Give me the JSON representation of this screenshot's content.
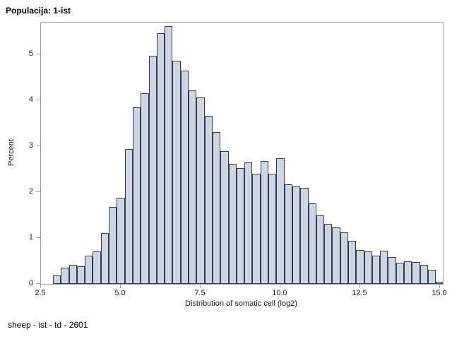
{
  "title": "Populacija: 1-ist",
  "footnote": "sheep - ist - td - 2601",
  "chart_data": {
    "type": "bar",
    "subtype": "histogram",
    "title": "Populacija: 1-ist",
    "xlabel": "Distribution of somatic cell (log2)",
    "ylabel": "Percent",
    "grid": false,
    "legend": null,
    "xlim": [
      2.5,
      15.09
    ],
    "ylim": [
      0,
      5.69
    ],
    "x_tick_labels": [
      "2.5",
      "5.0",
      "7.5",
      "10.0",
      "12.5",
      "15.0"
    ],
    "x_ticks": [
      2.5,
      5.0,
      7.5,
      10.0,
      12.5,
      15.0
    ],
    "y_tick_labels": [
      "0",
      "1",
      "2",
      "3",
      "4",
      "5"
    ],
    "y_ticks": [
      0,
      1,
      2,
      3,
      4,
      5
    ],
    "bin_width": 0.25,
    "bin_centers": [
      3.0,
      3.25,
      3.5,
      3.75,
      4.0,
      4.25,
      4.5,
      4.75,
      5.0,
      5.25,
      5.5,
      5.75,
      6.0,
      6.25,
      6.5,
      6.75,
      7.0,
      7.25,
      7.5,
      7.75,
      8.0,
      8.25,
      8.5,
      8.75,
      9.0,
      9.25,
      9.5,
      9.75,
      10.0,
      10.25,
      10.5,
      10.75,
      11.0,
      11.25,
      11.5,
      11.75,
      12.0,
      12.25,
      12.5,
      12.75,
      13.0,
      13.25,
      13.5,
      13.75,
      14.0,
      14.25,
      14.5,
      14.75,
      15.0
    ],
    "values": [
      0.18,
      0.36,
      0.41,
      0.39,
      0.62,
      0.7,
      1.1,
      1.68,
      1.87,
      2.94,
      3.84,
      4.15,
      4.97,
      5.46,
      5.61,
      4.86,
      4.65,
      4.21,
      4.06,
      3.66,
      3.3,
      2.89,
      2.61,
      2.52,
      2.64,
      2.4,
      2.68,
      2.4,
      2.73,
      2.17,
      2.12,
      2.09,
      1.75,
      1.49,
      1.3,
      1.23,
      1.13,
      0.94,
      0.74,
      0.7,
      0.62,
      0.73,
      0.58,
      0.46,
      0.5,
      0.48,
      0.42,
      0.31,
      0.05
    ],
    "bar_fill": "#ccd6e4",
    "bar_stroke": "#373c44",
    "frame_color": "#a2a2a2"
  }
}
